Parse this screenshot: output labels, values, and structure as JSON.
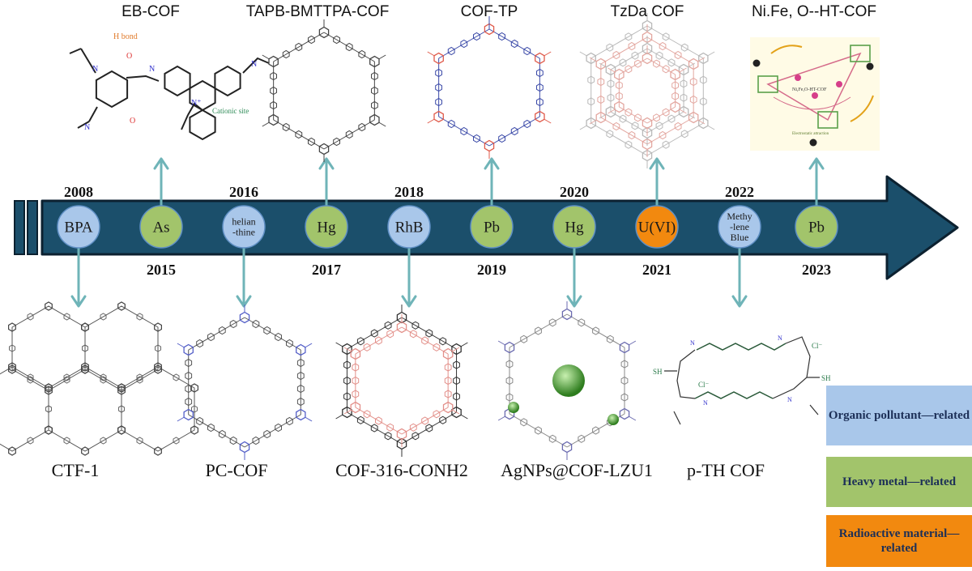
{
  "colors": {
    "arrow_fill": "#1b4f6b",
    "arrow_outline": "#0c2130",
    "connector": "#6fb4b8",
    "organic": "#a9c7ea",
    "heavy_metal": "#a2c46b",
    "radioactive": "#f2890f"
  },
  "timeline": {
    "years_top": [
      "2008",
      "2016",
      "2018",
      "2020",
      "2022"
    ],
    "years_bottom": [
      "2015",
      "2017",
      "2019",
      "2021",
      "2023"
    ],
    "nodes": [
      {
        "label": "BPA",
        "category": "organic"
      },
      {
        "label": "As",
        "category": "heavy_metal"
      },
      {
        "label": "helian-thine",
        "category": "organic"
      },
      {
        "label": "Hg",
        "category": "heavy_metal"
      },
      {
        "label": "RhB",
        "category": "organic"
      },
      {
        "label": "Pb",
        "category": "heavy_metal"
      },
      {
        "label": "Hg",
        "category": "heavy_metal"
      },
      {
        "label": "U(VI)",
        "category": "radioactive"
      },
      {
        "label": "Methy-lene Blue",
        "category": "organic"
      },
      {
        "label": "Pb",
        "category": "heavy_metal"
      }
    ]
  },
  "structures": {
    "top": [
      "EB-COF",
      "TAPB-BMTTPA-COF",
      "COF-TP",
      "TzDa COF",
      "Ni.Fe, O--HT-COF"
    ],
    "bottom": [
      "CTF-1",
      "PC-COF",
      "COF-316-CONH2",
      "AgNPs@COF-LZU1",
      "p-TH COF"
    ]
  },
  "figure_labels": {
    "h_bond": "H bond",
    "cationic_site": "Cationic site",
    "ni_fe_o_ht_cof": "Ni,Fe,O-HT-COF",
    "electrostatic": "Electrostatic attraction",
    "chloride": "Cl⁻",
    "sh": "SH"
  },
  "legend": [
    {
      "label": "Organic pollutant—related",
      "category": "organic"
    },
    {
      "label": "Heavy metal—related",
      "category": "heavy_metal"
    },
    {
      "label": "Radioactive material—related",
      "category": "radioactive"
    }
  ]
}
